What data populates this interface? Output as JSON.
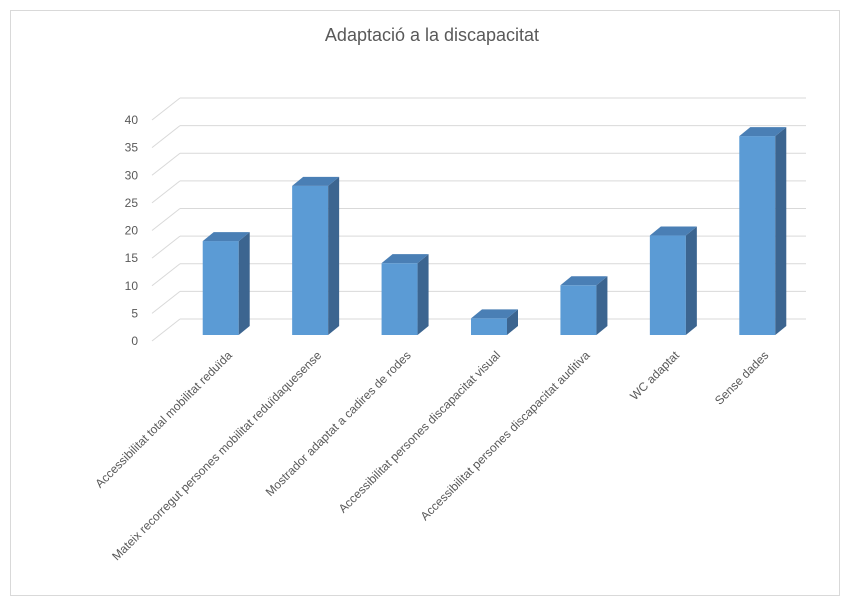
{
  "chart_data": {
    "type": "bar",
    "title": "Adaptació a la discapacitat",
    "categories": [
      "Accessibilitat total mobilitat reduïda",
      "Mateix recorregut persones mobilitat reduïdaquesense",
      "Mostrador adaptat a cadires de rodes",
      "Accessibilitat persones discapacitat visual",
      "Accessibilitat persones discapacitat auditiva",
      "WC adaptat",
      "Sense dades"
    ],
    "values": [
      17,
      27,
      13,
      3,
      9,
      18,
      36
    ],
    "ylim": [
      0,
      40
    ],
    "yticks": [
      0,
      5,
      10,
      15,
      20,
      25,
      30,
      35,
      40
    ],
    "xlabel": "",
    "ylabel": "",
    "grid": true,
    "style": "3d-column",
    "colors": {
      "front": "#5b9bd5",
      "side": "#3c6590",
      "top": "#4a7fb5",
      "grid": "#d9d9d9",
      "text": "#595959"
    }
  }
}
